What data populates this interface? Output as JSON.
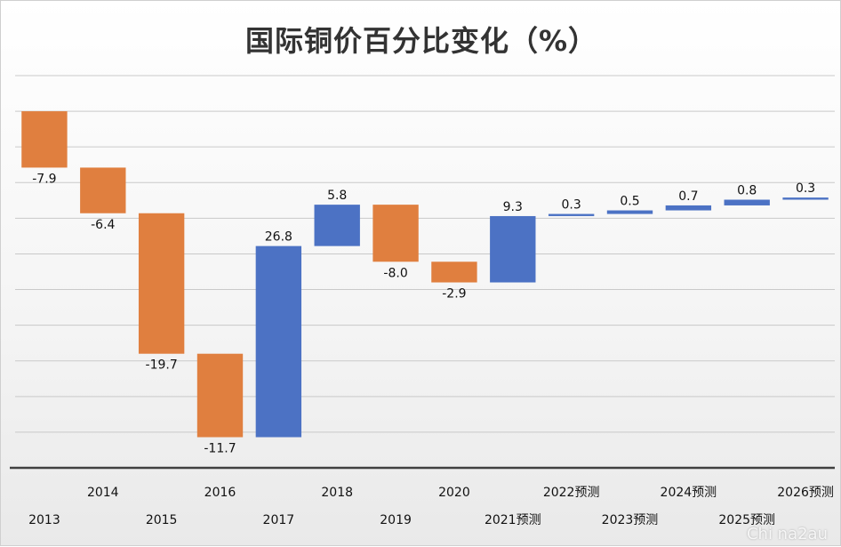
{
  "title": "国际铜价百分比变化（%）",
  "watermark": "Chi na2au",
  "colors": {
    "decrease": "#E07F3F",
    "increase": "#4C72C4",
    "grid": "#c9c9c9",
    "axis": "#404040"
  },
  "chart_data": {
    "type": "bar",
    "subtype": "waterfall",
    "title": "国际铜价百分比变化（%）",
    "categories": [
      "2013",
      "2014",
      "2015",
      "2016",
      "2017",
      "2018",
      "2019",
      "2020",
      "2021预测",
      "2022预测",
      "2023预测",
      "2024预测",
      "2025预测",
      "2026预测"
    ],
    "values": [
      -7.9,
      -6.4,
      -19.7,
      -11.7,
      26.8,
      5.8,
      -8.0,
      -2.9,
      9.3,
      0.3,
      0.5,
      0.7,
      0.8,
      0.3
    ],
    "data_labels": [
      "-7.9",
      "-6.4",
      "-19.7",
      "-11.7",
      "26.8",
      "5.8",
      "-8.0",
      "-2.9",
      "9.3",
      "0.3",
      "0.5",
      "0.7",
      "0.8",
      "0.3"
    ],
    "start_value": 0,
    "ylim": [
      -50,
      5
    ],
    "grid": true,
    "legend": "none",
    "xlabel": "",
    "ylabel": ""
  }
}
